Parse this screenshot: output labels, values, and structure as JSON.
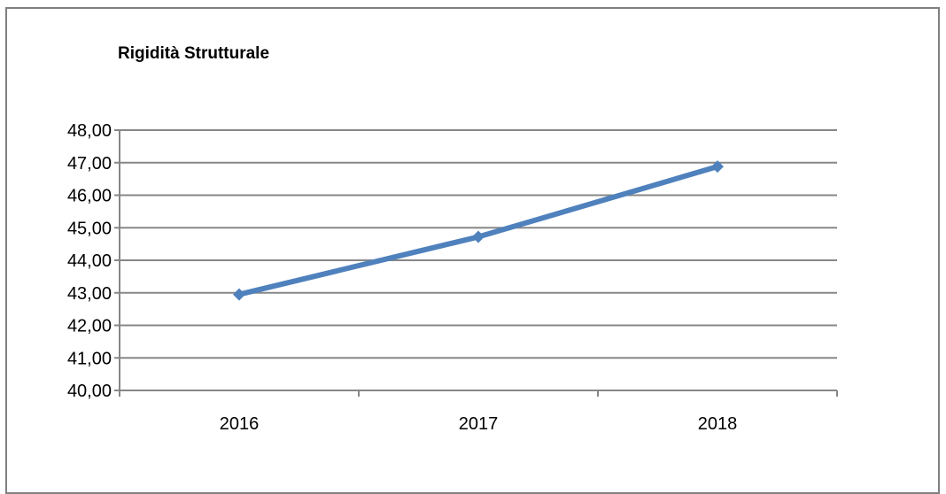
{
  "chart_data": {
    "type": "line",
    "title": "Rigidità Strutturale",
    "categories": [
      "2016",
      "2017",
      "2018"
    ],
    "series": [
      {
        "values": [
          42.95,
          44.72,
          46.88
        ],
        "color": "#4f81bd"
      }
    ],
    "ylim": [
      40,
      48
    ],
    "yticks": [
      40,
      41,
      42,
      43,
      44,
      45,
      46,
      47,
      48
    ],
    "ytick_labels": [
      "40,00",
      "41,00",
      "42,00",
      "43,00",
      "44,00",
      "45,00",
      "46,00",
      "47,00",
      "48,00"
    ],
    "grid": true,
    "legend": "none",
    "xlabel": "",
    "ylabel": ""
  }
}
